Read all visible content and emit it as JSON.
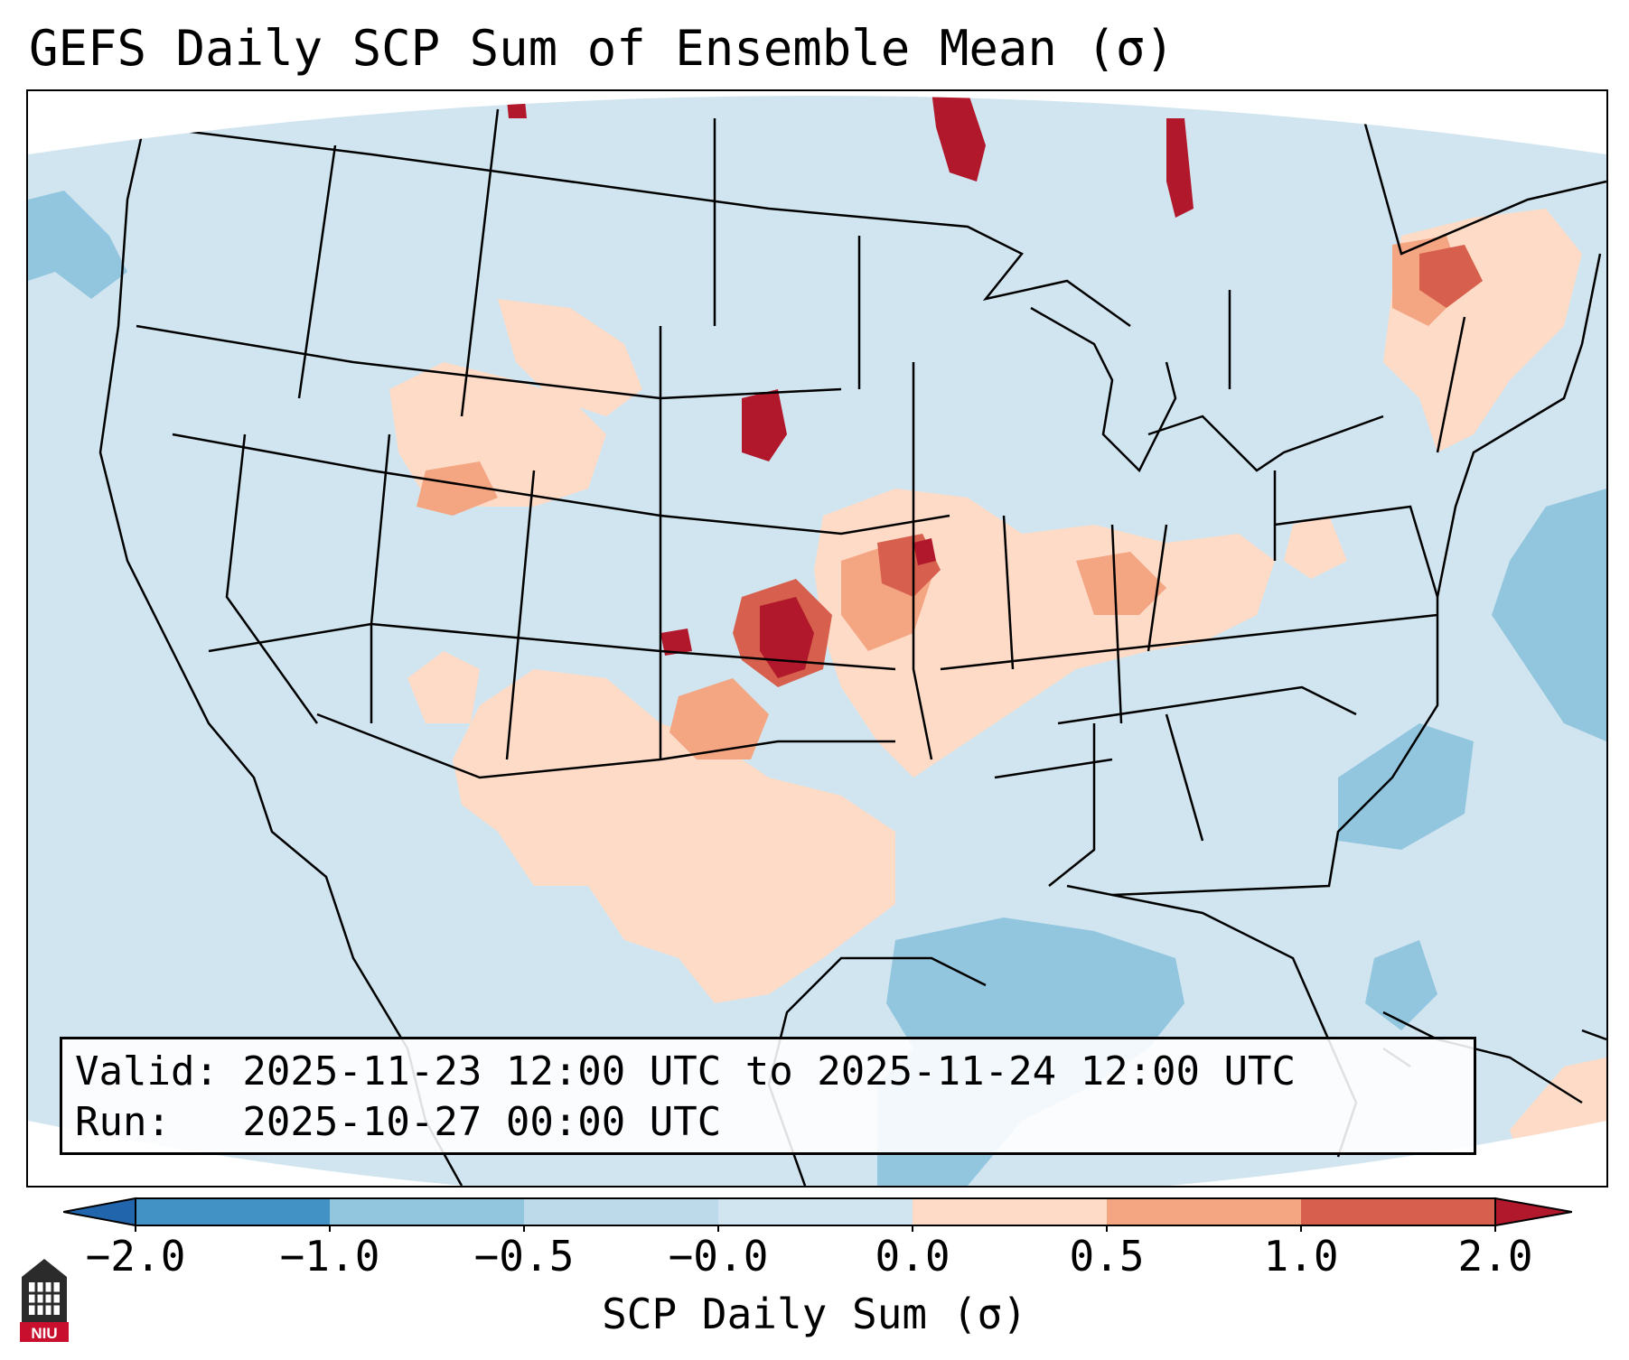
{
  "title": "GEFS Daily SCP Sum of Ensemble Mean (σ)",
  "info": {
    "valid_line": "Valid: 2025-11-23 12:00 UTC to 2025-11-24 12:00 UTC",
    "run_line": "Run:   2025-10-27 00:00 UTC"
  },
  "colorbar": {
    "label": "SCP Daily Sum (σ)",
    "ticks": [
      "−2.0",
      "−1.0",
      "−0.5",
      "−0.0",
      "0.0",
      "0.5",
      "1.0",
      "2.0"
    ],
    "bin_colors": [
      "#4292c6",
      "#92c5de",
      "#bcdaea",
      "#d1e5f0",
      "#fddbc7",
      "#f4a582",
      "#d6604d",
      "#b2182b"
    ],
    "under_color": "#2166ac",
    "over_color": "#b2182b"
  },
  "map": {
    "background_color": "#d1e5f0",
    "outside_color": "#ffffff",
    "border_color": "#000000",
    "anomaly_regions": [
      {
        "region": "Kansas-Oklahoma",
        "level": "2.0"
      },
      {
        "region": "South Dakota",
        "level": "2.0"
      },
      {
        "region": "Missouri-Illinois",
        "level": "1.0"
      },
      {
        "region": "Texas-New Mexico",
        "level": "0.0"
      },
      {
        "region": "Gulf of Mexico",
        "level": "-0.5"
      },
      {
        "region": "Western Atlantic",
        "level": "-0.5"
      },
      {
        "region": "Quebec",
        "level": "1.0"
      }
    ]
  },
  "logo": {
    "text": "NIU",
    "color": "#c8102e"
  }
}
